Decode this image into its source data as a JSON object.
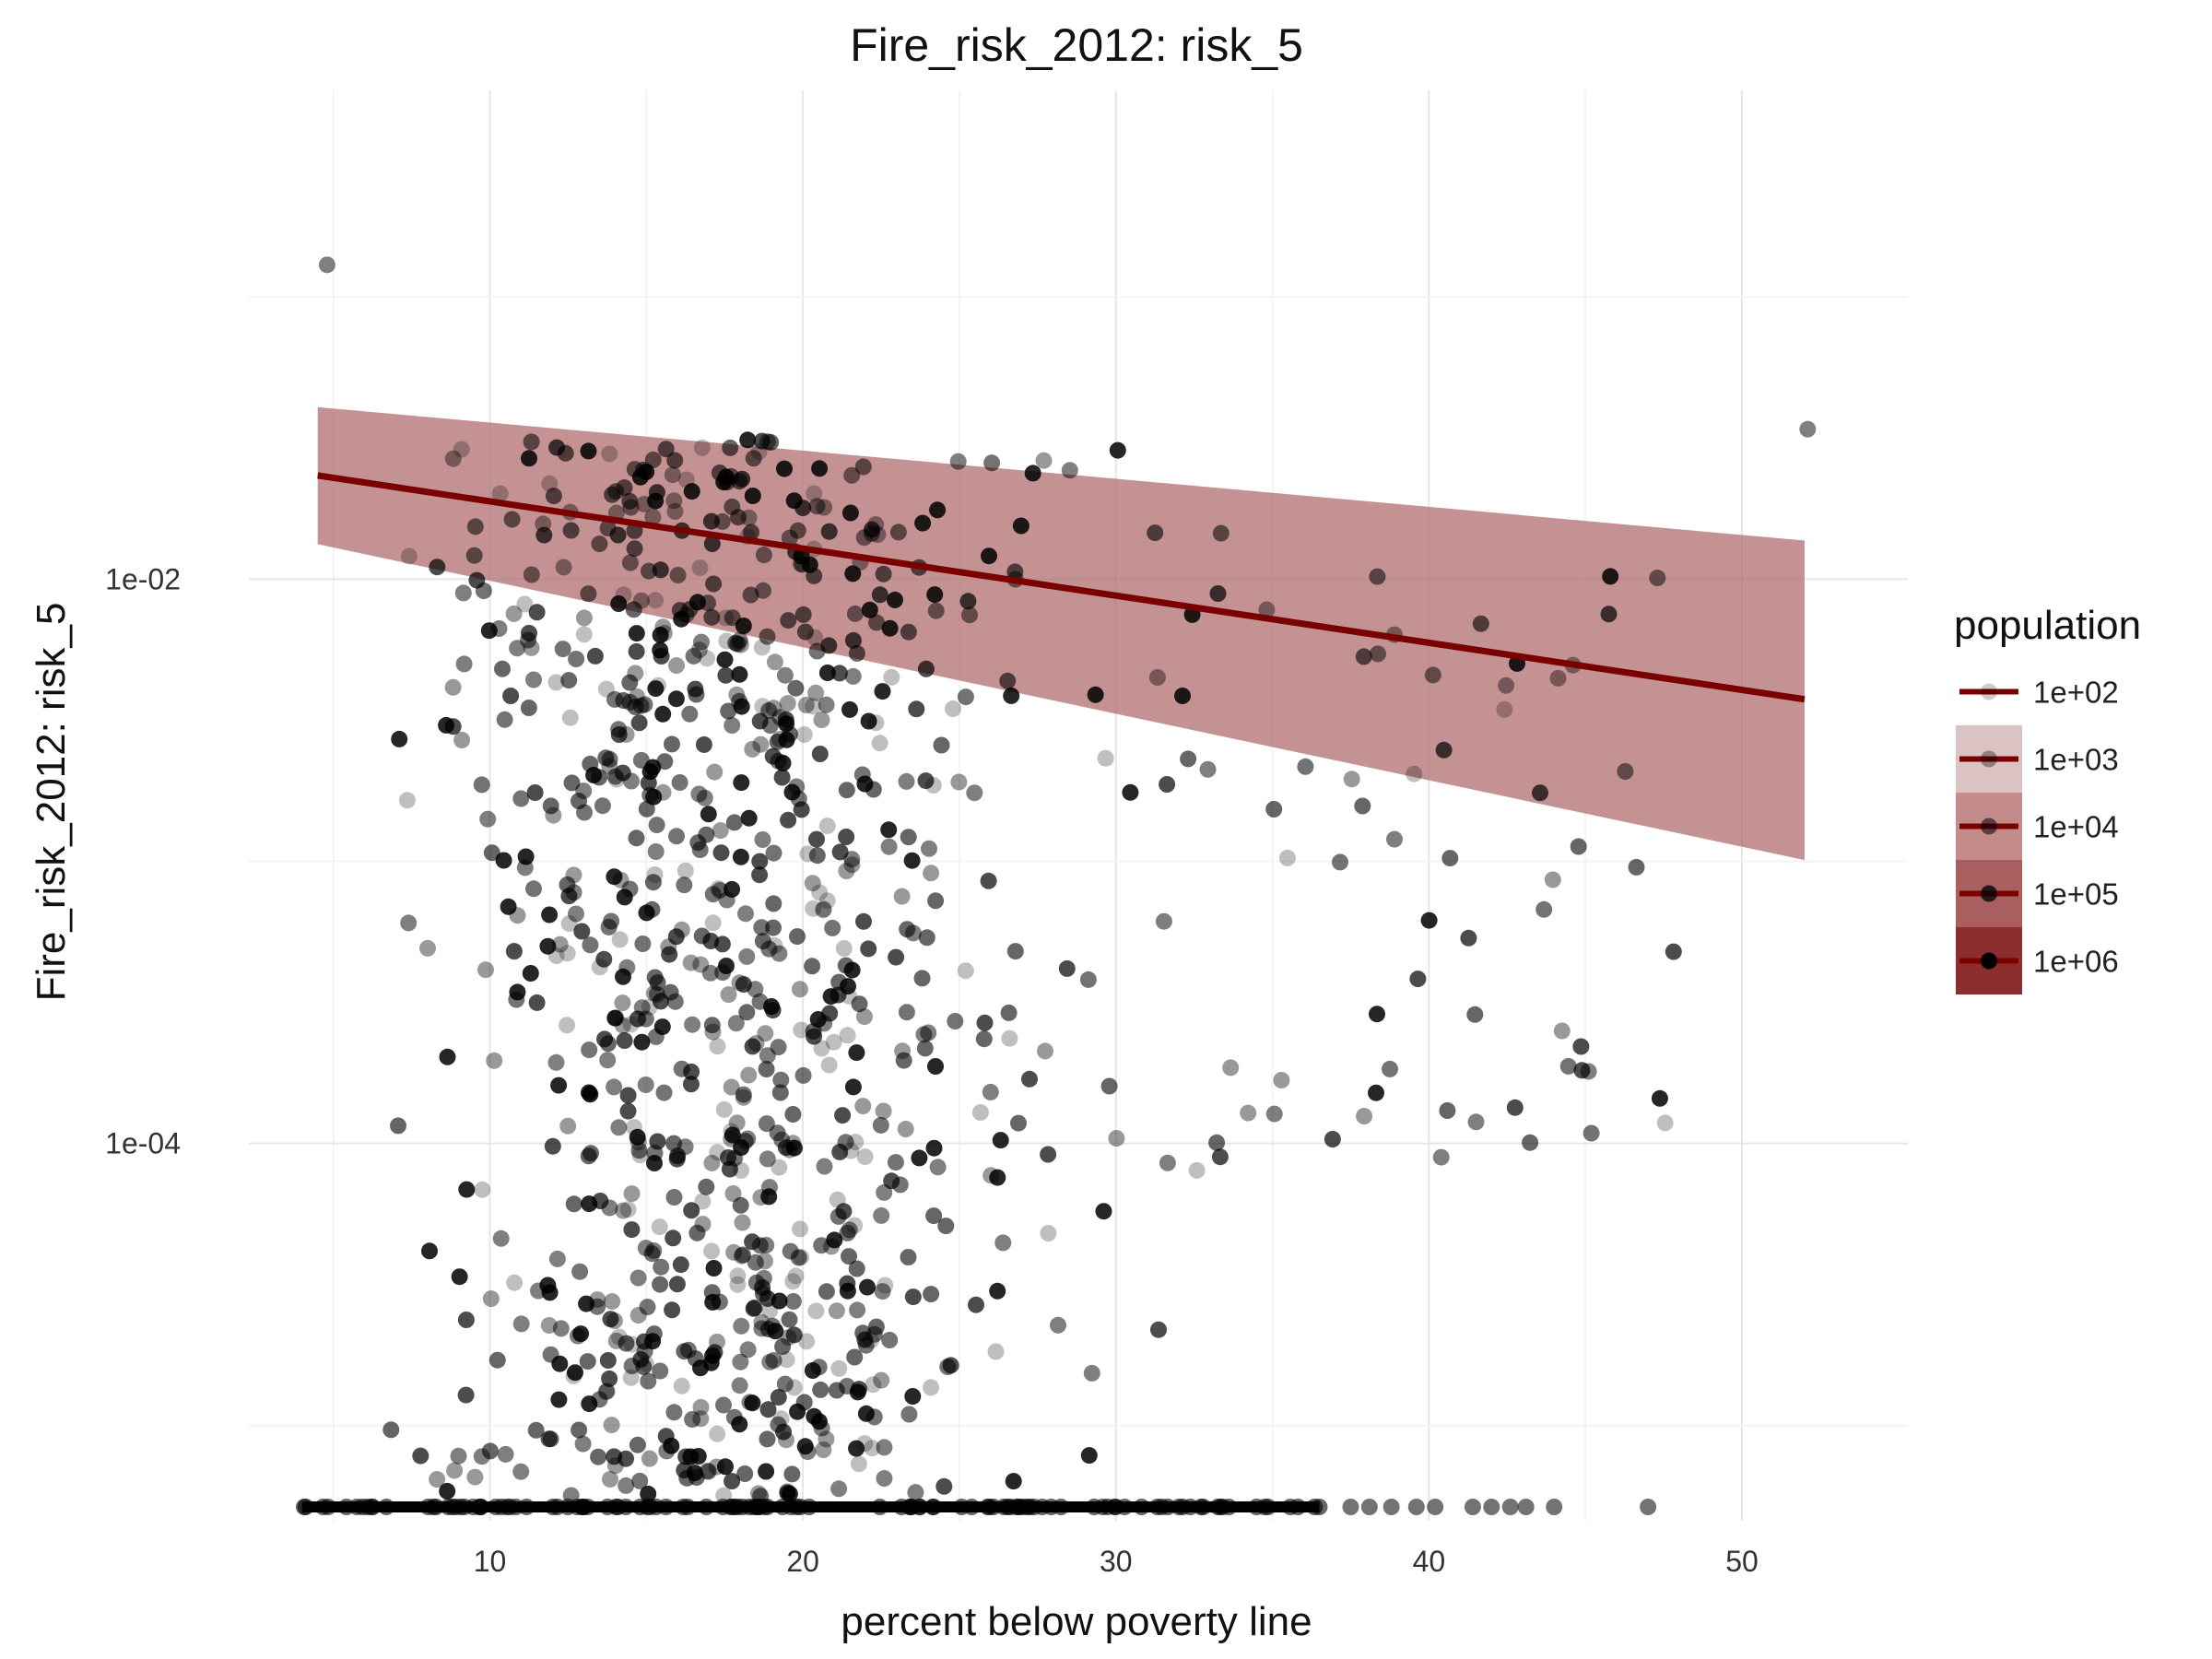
{
  "chart_data": {
    "type": "scatter",
    "title": "Fire_risk_2012: risk_5",
    "xlabel": "percent below poverty line",
    "ylabel": "Fire_risk_2012: risk_5",
    "x_ticks": [
      10,
      20,
      30,
      40,
      50
    ],
    "x_tick_labels": [
      "10",
      "20",
      "30",
      "40",
      "50"
    ],
    "xlim": [
      2.3,
      55.3
    ],
    "y_scale": "log10",
    "y_ticks": [
      0.0001,
      0.01
    ],
    "y_tick_labels": [
      "1e-04",
      "1e-02"
    ],
    "ylim": [
      4.6e-06,
      0.54
    ],
    "grid": true,
    "legend": {
      "title": "population",
      "position": "right",
      "entries": [
        "1e+02",
        "1e+03",
        "1e+04",
        "1e+05",
        "1e+06"
      ]
    },
    "point_color": "#000000",
    "trend": {
      "name": "fit",
      "x": [
        4.5,
        52.0
      ],
      "y": [
        0.0233,
        0.00375
      ],
      "ci_lower": [
        0.0133,
        0.00101
      ],
      "ci_upper": [
        0.0407,
        0.0137
      ],
      "line_color": "#7a0000",
      "band_color": "#b06d6f"
    },
    "zero_row": {
      "description": "observations at the bottom of the panel",
      "x_min": 4.0,
      "x_max": 47.0
    }
  }
}
